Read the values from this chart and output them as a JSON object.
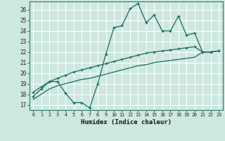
{
  "xlabel": "Humidex (Indice chaleur)",
  "background_color": "#cce8e0",
  "grid_color": "#aacfc8",
  "line_color": "#1a6b5a",
  "xlim": [
    -0.5,
    23.5
  ],
  "ylim": [
    16.5,
    26.8
  ],
  "xticks": [
    0,
    1,
    2,
    3,
    4,
    5,
    6,
    7,
    8,
    9,
    10,
    11,
    12,
    13,
    14,
    15,
    16,
    17,
    18,
    19,
    20,
    21,
    22,
    23
  ],
  "yticks": [
    17,
    18,
    19,
    20,
    21,
    22,
    23,
    24,
    25,
    26
  ],
  "series1_y": [
    17.8,
    18.5,
    19.2,
    19.2,
    18.1,
    17.2,
    17.2,
    16.7,
    19.0,
    21.8,
    24.3,
    24.5,
    26.1,
    26.6,
    24.8,
    25.5,
    24.0,
    24.0,
    25.4,
    23.6,
    23.8,
    22.0,
    22.0,
    22.1
  ],
  "series2_y": [
    18.2,
    18.7,
    19.2,
    19.5,
    19.8,
    20.1,
    20.3,
    20.5,
    20.7,
    20.9,
    21.1,
    21.3,
    21.5,
    21.7,
    21.9,
    22.0,
    22.1,
    22.2,
    22.3,
    22.4,
    22.5,
    22.0,
    22.0,
    22.1
  ],
  "series3_y": [
    17.5,
    18.0,
    18.5,
    18.8,
    19.0,
    19.2,
    19.4,
    19.5,
    19.7,
    19.9,
    20.1,
    20.3,
    20.5,
    20.7,
    20.8,
    21.0,
    21.1,
    21.2,
    21.3,
    21.4,
    21.5,
    22.0,
    22.0,
    22.1
  ]
}
